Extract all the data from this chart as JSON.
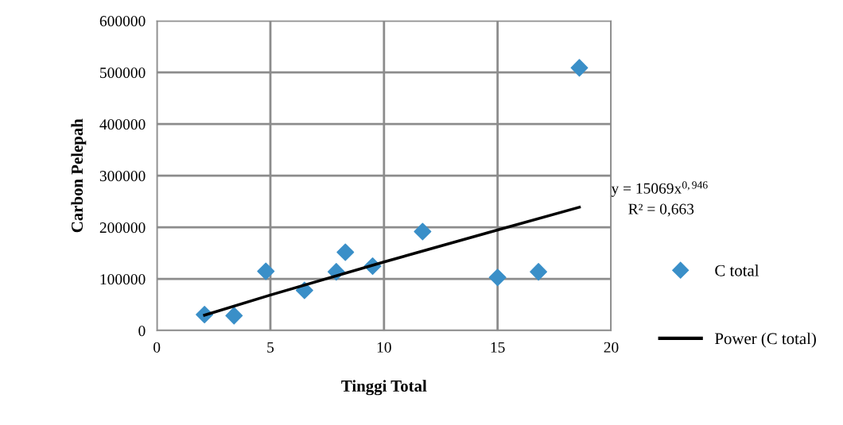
{
  "chart_data": {
    "type": "scatter",
    "xlabel": "Tinggi Total",
    "ylabel": "Carbon Pelepah",
    "series": [
      {
        "name": "C total",
        "color": "#3a8fc8",
        "marker": "diamond",
        "x": [
          2.1,
          3.4,
          4.8,
          6.5,
          7.9,
          8.3,
          9.5,
          11.7,
          15.0,
          16.8,
          18.6
        ],
        "values": [
          31000,
          29000,
          115000,
          78000,
          114000,
          152000,
          125000,
          192000,
          103000,
          114000,
          509000
        ]
      },
      {
        "name": "Power (C total)",
        "type": "line",
        "color": "#000000",
        "marker": "none",
        "line_style": "solid",
        "x": [
          2.1,
          5,
          10,
          15,
          18.6
        ],
        "values": [
          30000,
          69000,
          133000,
          195000,
          239000
        ]
      }
    ],
    "xlim": [
      0,
      20
    ],
    "xticks": [
      0,
      5,
      10,
      15,
      20
    ],
    "ylim": [
      0,
      600000
    ],
    "yticks": [
      0,
      100000,
      200000,
      300000,
      400000,
      500000,
      600000
    ],
    "grid": true,
    "legend": "right",
    "annotations": [
      "y = 15069x$^{0,946}$",
      "R² = 0,663"
    ]
  }
}
